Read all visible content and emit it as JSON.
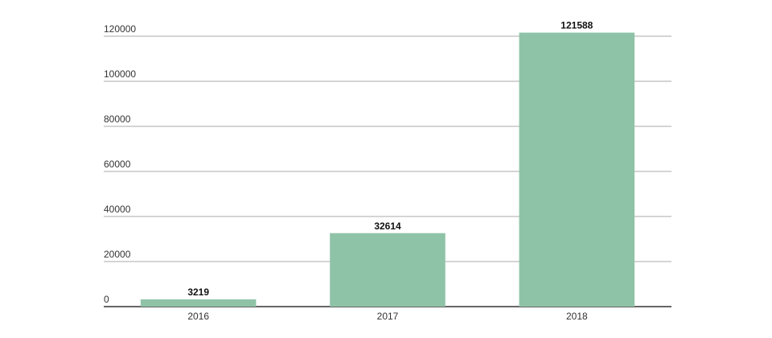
{
  "chart_data": {
    "type": "bar",
    "categories": [
      "2016",
      "2017",
      "2018"
    ],
    "values": [
      3219,
      32614,
      121588
    ],
    "color": "#8fc3a7",
    "ylim": [
      0,
      122000
    ],
    "yticks": [
      0,
      20000,
      40000,
      60000,
      80000,
      100000,
      120000
    ],
    "grid": true
  }
}
